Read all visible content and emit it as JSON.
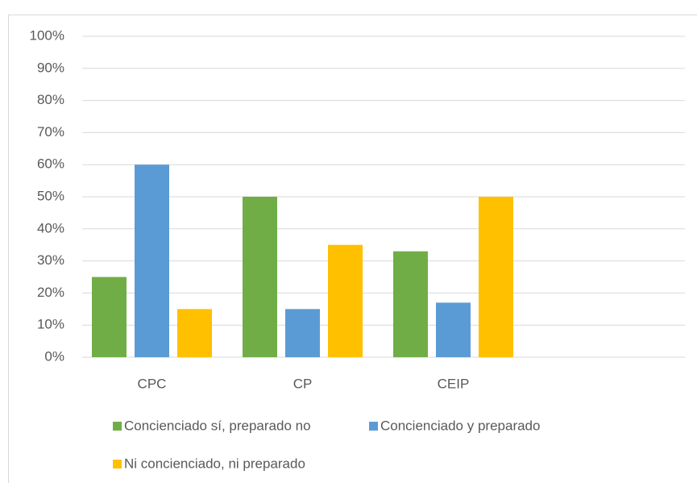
{
  "chart_data": {
    "type": "bar",
    "categories": [
      "CPC",
      "CP",
      "CEIP",
      null
    ],
    "series": [
      {
        "name": "Concienciado sí, preparado no",
        "color": "#70ad47",
        "values": [
          25,
          50,
          33,
          null
        ]
      },
      {
        "name": "Concienciado y preparado",
        "color": "#5b9bd5",
        "values": [
          60,
          15,
          17,
          null
        ]
      },
      {
        "name": "Ni concienciado, ni preparado",
        "color": "#ffc000",
        "values": [
          15,
          35,
          50,
          null
        ]
      }
    ],
    "ylim": [
      0,
      100
    ],
    "yticks": [
      {
        "value": 0,
        "label": "0%"
      },
      {
        "value": 10,
        "label": "10%"
      },
      {
        "value": 20,
        "label": "20%"
      },
      {
        "value": 30,
        "label": "30%"
      },
      {
        "value": 40,
        "label": "40%"
      },
      {
        "value": 50,
        "label": "50%"
      },
      {
        "value": 60,
        "label": "60%"
      },
      {
        "value": 70,
        "label": "70%"
      },
      {
        "value": 80,
        "label": "80%"
      },
      {
        "value": 90,
        "label": "90%"
      },
      {
        "value": 100,
        "label": "100%"
      }
    ],
    "grid": true,
    "legend": "bottom"
  }
}
